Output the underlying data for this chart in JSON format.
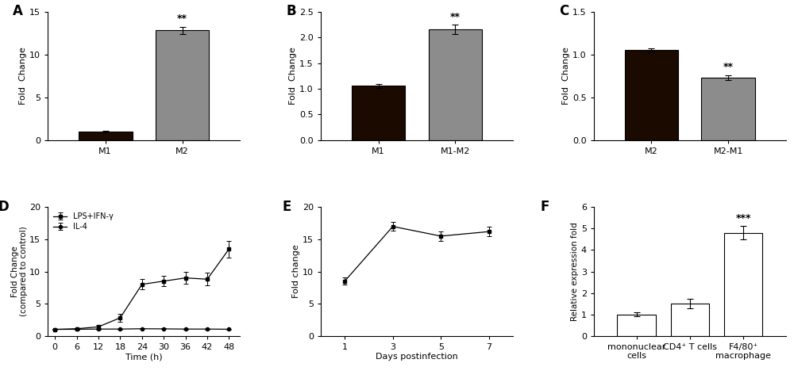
{
  "panel_A": {
    "categories": [
      "M1",
      "M2"
    ],
    "values": [
      1.0,
      12.8
    ],
    "errors": [
      0.08,
      0.38
    ],
    "colors": [
      "#1a0a00",
      "#8c8c8c"
    ],
    "ylabel": "Fold  Change",
    "ylim": [
      0,
      15
    ],
    "yticks": [
      0,
      5,
      10,
      15
    ],
    "sig": "**",
    "sig_bar_index": 1,
    "label": "A"
  },
  "panel_B": {
    "categories": [
      "M1",
      "M1-M2"
    ],
    "values": [
      1.06,
      2.15
    ],
    "errors": [
      0.04,
      0.09
    ],
    "colors": [
      "#1a0a00",
      "#8c8c8c"
    ],
    "ylabel": "Fold  Change",
    "ylim": [
      0,
      2.5
    ],
    "yticks": [
      0.0,
      0.5,
      1.0,
      1.5,
      2.0,
      2.5
    ],
    "sig": "**",
    "sig_bar_index": 1,
    "label": "B"
  },
  "panel_C": {
    "categories": [
      "M2",
      "M2-M1"
    ],
    "values": [
      1.05,
      0.73
    ],
    "errors": [
      0.025,
      0.025
    ],
    "colors": [
      "#1a0a00",
      "#8c8c8c"
    ],
    "ylabel": "Fold  Change",
    "ylim": [
      0,
      1.5
    ],
    "yticks": [
      0.0,
      0.5,
      1.0,
      1.5
    ],
    "sig": "**",
    "sig_bar_index": 1,
    "label": "C"
  },
  "panel_D": {
    "time": [
      0,
      6,
      12,
      18,
      24,
      30,
      36,
      42,
      48
    ],
    "lps_values": [
      1.0,
      1.1,
      1.4,
      2.8,
      8.0,
      8.5,
      9.0,
      8.8,
      13.5
    ],
    "lps_errors": [
      0.1,
      0.12,
      0.25,
      0.6,
      0.8,
      0.8,
      0.9,
      1.0,
      1.3
    ],
    "il4_values": [
      1.0,
      1.02,
      1.05,
      1.05,
      1.1,
      1.08,
      1.05,
      1.05,
      1.02
    ],
    "il4_errors": [
      0.04,
      0.05,
      0.06,
      0.07,
      0.08,
      0.07,
      0.06,
      0.06,
      0.05
    ],
    "ylabel": "Fold Change\n(compared to control)",
    "xlabel": "Time (h)",
    "ylim": [
      0,
      20
    ],
    "yticks": [
      0,
      5,
      10,
      15,
      20
    ],
    "legend": [
      "LPS+IFN-γ",
      "IL-4"
    ],
    "label": "D"
  },
  "panel_E": {
    "days": [
      1,
      3,
      5,
      7
    ],
    "values": [
      8.5,
      17.0,
      15.5,
      16.2
    ],
    "errors": [
      0.55,
      0.65,
      0.75,
      0.75
    ],
    "ylabel": "Fold change",
    "xlabel": "Days postinfection",
    "ylim": [
      0,
      20
    ],
    "yticks": [
      0,
      5,
      10,
      15,
      20
    ],
    "label": "E"
  },
  "panel_F": {
    "categories": [
      "mononuclear\ncells",
      "CD4⁺ T cells",
      "F4/80⁺\nmacrophage"
    ],
    "values": [
      1.0,
      1.5,
      4.8
    ],
    "errors": [
      0.1,
      0.22,
      0.32
    ],
    "colors": [
      "#ffffff",
      "#ffffff",
      "#ffffff"
    ],
    "ylabel": "Relative expression fold",
    "ylim": [
      0,
      6
    ],
    "yticks": [
      0,
      1,
      2,
      3,
      4,
      5,
      6
    ],
    "sig": "***",
    "sig_bar_index": 2,
    "label": "F"
  }
}
